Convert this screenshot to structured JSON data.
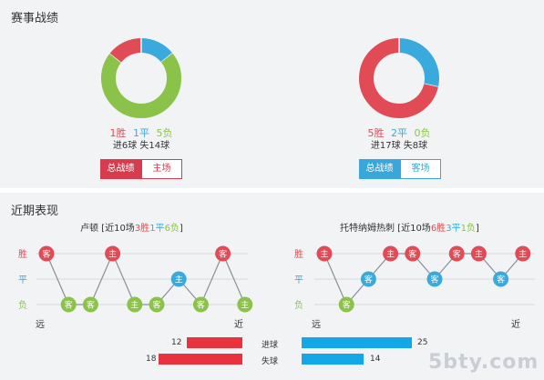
{
  "overall": {
    "title": "赛事战绩",
    "left": {
      "record": {
        "wins": "1胜",
        "draws": "1平",
        "losses": "5负"
      },
      "goals": "进6球  失14球",
      "split": {
        "win": 1,
        "draw": 1,
        "loss": 5
      },
      "buttons": {
        "total": "总战绩",
        "venue": "主场"
      }
    },
    "right": {
      "record": {
        "wins": "5胜",
        "draws": "2平",
        "losses": "0负"
      },
      "goals": "进17球  失8球",
      "split": {
        "win": 5,
        "draw": 2,
        "loss": 0
      },
      "buttons": {
        "total": "总战绩",
        "venue": "客场"
      }
    },
    "colors": {
      "win": "#e14b55",
      "draw": "#3aa9dc",
      "loss": "#8bc34a"
    }
  },
  "recent": {
    "title": "近期表现",
    "row_labels": {
      "win": "胜",
      "draw": "平",
      "loss": "负"
    },
    "axis": {
      "far": "远",
      "near": "近"
    },
    "left": {
      "team": "卢顿",
      "prefix": " [近10场",
      "wins": "3胜",
      "draws": "1平",
      "losses": "6负",
      "suffix": "]",
      "results": [
        "W",
        "L",
        "L",
        "W",
        "L",
        "L",
        "D",
        "L",
        "W",
        "L"
      ],
      "venues": [
        "客",
        "客",
        "客",
        "主",
        "主",
        "客",
        "主",
        "客",
        "客",
        "主"
      ]
    },
    "right": {
      "team": "托特纳姆热刺",
      "prefix": " [近10场",
      "wins": "6胜",
      "draws": "3平",
      "losses": "1负",
      "suffix": "]",
      "results": [
        "W",
        "L",
        "D",
        "W",
        "W",
        "D",
        "W",
        "W",
        "D",
        "W"
      ],
      "venues": [
        "主",
        "客",
        "客",
        "主",
        "客",
        "客",
        "客",
        "主",
        "客",
        "主"
      ]
    },
    "stats": [
      {
        "label": "进球",
        "left": 12,
        "right": 25
      },
      {
        "label": "失球",
        "left": 18,
        "right": 14
      }
    ]
  },
  "watermark": "5bty.com"
}
